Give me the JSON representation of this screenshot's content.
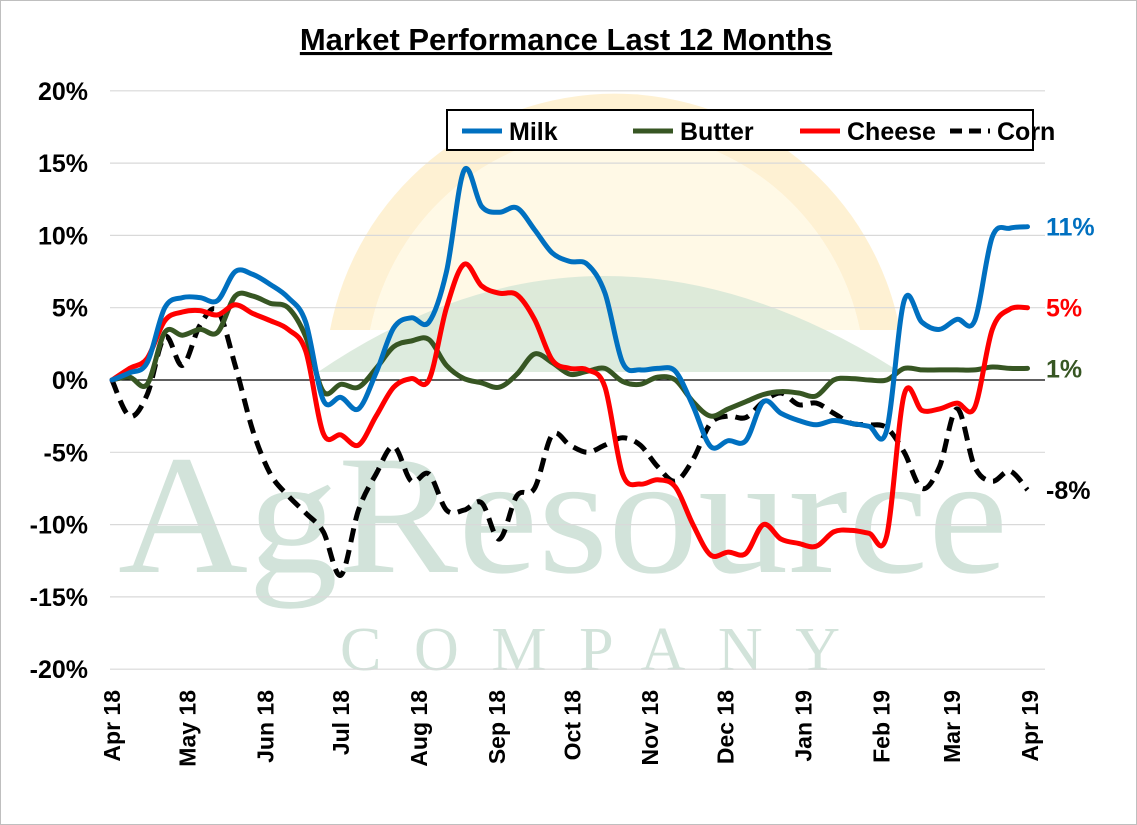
{
  "chart_data": {
    "type": "line",
    "title": "Market Performance Last 12 Months",
    "xlabel": "",
    "ylabel": "",
    "xlim": [
      "2018-04-01",
      "2019-04-01"
    ],
    "ylim": [
      -20,
      20
    ],
    "grid": true,
    "legend_placement": "top-right",
    "y_ticks": [
      "20%",
      "15%",
      "10%",
      "5%",
      "0%",
      "-5%",
      "-10%",
      "-15%",
      "-20%"
    ],
    "y_tick_values": [
      20,
      15,
      10,
      5,
      0,
      -5,
      -10,
      -15,
      -20
    ],
    "x_ticks": [
      {
        "label": "Apr 18",
        "date": "2018-04-01"
      },
      {
        "label": "May 18",
        "date": "2018-05-01"
      },
      {
        "label": "Jun 18",
        "date": "2018-06-01"
      },
      {
        "label": "Jul 18",
        "date": "2018-07-01"
      },
      {
        "label": "Aug 18",
        "date": "2018-08-01"
      },
      {
        "label": "Sep 18",
        "date": "2018-09-01"
      },
      {
        "label": "Oct 18",
        "date": "2018-10-01"
      },
      {
        "label": "Nov 18",
        "date": "2018-11-01"
      },
      {
        "label": "Dec 18",
        "date": "2018-12-01"
      },
      {
        "label": "Jan 19",
        "date": "2019-01-01"
      },
      {
        "label": "Feb 19",
        "date": "2019-02-01"
      },
      {
        "label": "Mar 19",
        "date": "2019-03-01"
      },
      {
        "label": "Apr 19",
        "date": "2019-04-01"
      }
    ],
    "x": [
      "2018-04-01",
      "2018-04-08",
      "2018-04-15",
      "2018-04-22",
      "2018-04-29",
      "2018-05-06",
      "2018-05-13",
      "2018-05-20",
      "2018-05-27",
      "2018-06-03",
      "2018-06-10",
      "2018-06-17",
      "2018-06-24",
      "2018-07-01",
      "2018-07-08",
      "2018-07-15",
      "2018-07-22",
      "2018-07-29",
      "2018-08-05",
      "2018-08-12",
      "2018-08-19",
      "2018-08-26",
      "2018-09-02",
      "2018-09-09",
      "2018-09-16",
      "2018-09-23",
      "2018-09-30",
      "2018-10-07",
      "2018-10-14",
      "2018-10-21",
      "2018-10-28",
      "2018-11-04",
      "2018-11-11",
      "2018-11-18",
      "2018-11-25",
      "2018-12-02",
      "2018-12-09",
      "2018-12-16",
      "2018-12-23",
      "2018-12-30",
      "2019-01-06",
      "2019-01-13",
      "2019-01-20",
      "2019-01-27",
      "2019-02-03",
      "2019-02-10",
      "2019-02-17",
      "2019-02-24",
      "2019-03-03",
      "2019-03-10",
      "2019-03-17",
      "2019-03-24",
      "2019-03-31"
    ],
    "series": [
      {
        "name": "Milk",
        "color": "#0070C0",
        "dash": false,
        "end_label": "11%",
        "values": [
          0,
          0.5,
          1.2,
          5.0,
          5.7,
          5.7,
          5.5,
          7.5,
          7.3,
          6.6,
          5.7,
          4.0,
          -1.4,
          -1.2,
          -2.0,
          0.5,
          3.6,
          4.3,
          4.0,
          7.5,
          14.5,
          12.0,
          11.6,
          11.9,
          10.4,
          8.8,
          8.2,
          8.0,
          6.0,
          1.2,
          0.7,
          0.8,
          0.6,
          -1.8,
          -4.6,
          -4.2,
          -4.2,
          -1.5,
          -2.3,
          -2.8,
          -3.1,
          -2.8,
          -3.0,
          -3.2,
          -3.5,
          5.5,
          4.0,
          3.5,
          4.2,
          4.1,
          9.9,
          10.5,
          10.6
        ]
      },
      {
        "name": "Butter",
        "color": "#375623",
        "dash": false,
        "end_label": "1%",
        "values": [
          0,
          0.2,
          -0.3,
          3.3,
          3.1,
          3.5,
          3.3,
          5.8,
          5.8,
          5.3,
          5.0,
          3.0,
          -0.8,
          -0.3,
          -0.5,
          0.8,
          2.3,
          2.7,
          2.8,
          1.0,
          0.1,
          -0.2,
          -0.5,
          0.4,
          1.8,
          1.2,
          0.4,
          0.6,
          0.8,
          -0.1,
          -0.3,
          0.2,
          0,
          -1.5,
          -2.5,
          -2.0,
          -1.5,
          -1.0,
          -0.8,
          -0.9,
          -1.1,
          0.0,
          0.1,
          0,
          0,
          0.8,
          0.7,
          0.7,
          0.7,
          0.7,
          0.9,
          0.8,
          0.8
        ]
      },
      {
        "name": "Cheese",
        "color": "#FF0000",
        "dash": false,
        "end_label": "5%",
        "values": [
          0,
          0.8,
          1.5,
          4.1,
          4.7,
          4.8,
          4.5,
          5.2,
          4.6,
          4.1,
          3.5,
          2.0,
          -3.7,
          -3.8,
          -4.5,
          -2.5,
          -0.5,
          0.1,
          0,
          5.0,
          8.0,
          6.5,
          6.0,
          5.9,
          4.2,
          1.4,
          0.8,
          0.7,
          -0.5,
          -6.5,
          -7.2,
          -6.9,
          -7.4,
          -10.0,
          -12.1,
          -11.9,
          -12.0,
          -10.0,
          -11.0,
          -11.3,
          -11.5,
          -10.5,
          -10.4,
          -10.6,
          -10.8,
          -1.0,
          -2.1,
          -2.0,
          -1.6,
          -1.9,
          3.5,
          4.9,
          5.0
        ]
      },
      {
        "name": "Corn",
        "color": "#000000",
        "dash": true,
        "end_label": "-8%",
        "values": [
          0,
          -2.5,
          -1.0,
          3.0,
          1.0,
          3.8,
          4.8,
          1.0,
          -3.5,
          -6.5,
          -8.0,
          -9.2,
          -10.5,
          -13.5,
          -9.0,
          -6.5,
          -4.6,
          -7.0,
          -6.5,
          -9.0,
          -9.0,
          -8.5,
          -11.0,
          -8.0,
          -7.5,
          -3.8,
          -4.5,
          -5.0,
          -4.5,
          -4.0,
          -4.5,
          -6.0,
          -7.0,
          -5.5,
          -3.0,
          -2.5,
          -2.6,
          -1.5,
          -0.9,
          -1.7,
          -1.6,
          -2.3,
          -3.0,
          -3.1,
          -3.3,
          -5.0,
          -7.5,
          -6.0,
          -2.0,
          -6.0,
          -7.0,
          -6.3,
          -7.6
        ]
      }
    ]
  },
  "watermark": {
    "line1": "AgResource",
    "line2": "COMPANY"
  }
}
